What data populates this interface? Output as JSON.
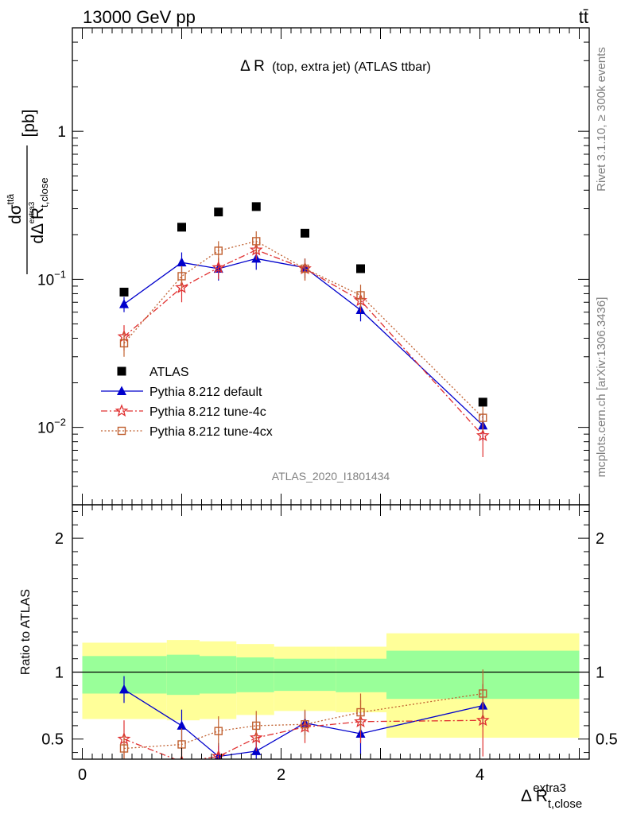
{
  "header": {
    "left": "13000 GeV pp",
    "right": "tt̄"
  },
  "colors": {
    "atlas": "#000000",
    "default": "#0000cc",
    "tune4c": "#e03030",
    "tune4cx": "#c06030",
    "band_inner": "#99ff99",
    "band_outer": "#ffff99"
  },
  "side_texts": {
    "rivet": "Rivet 3.1.10, ≥ 300k events",
    "mcplots": "mcplots.cern.ch [arXiv:1306.3436]"
  },
  "analysis_tag": "ATLAS_2020_I1801434",
  "chart_data": [
    {
      "type": "scatter",
      "title_main": "Δ R",
      "title_detail": "(top, extra jet) (ATLAS ttbar)",
      "ylabel": {
        "num": "dσ",
        "num_sup": "ttā",
        "den": "dΔ R",
        "den_sub": "t,close",
        "den_sup": "extra3",
        "unit": "[pb]"
      },
      "yscale": "log",
      "ylim": [
        0.003,
        5
      ],
      "xlim": [
        -0.1,
        5.1
      ],
      "yticks": [
        {
          "value": 0.01,
          "base": "10",
          "exp": "−2"
        },
        {
          "value": 0.1,
          "base": "10",
          "exp": "−1"
        },
        {
          "value": 1,
          "base": "1",
          "exp": ""
        }
      ],
      "legend_placement": "lower-left",
      "series": [
        {
          "name": "ATLAS",
          "key": "atlas",
          "marker": "square",
          "x": [
            0.42,
            1.0,
            1.37,
            1.75,
            2.24,
            2.8,
            4.03
          ],
          "y": [
            0.082,
            0.225,
            0.285,
            0.31,
            0.205,
            0.118,
            0.0148
          ]
        },
        {
          "name": "Pythia 8.212 default",
          "key": "default",
          "marker": "triangle",
          "x": [
            0.42,
            1.0,
            1.37,
            1.75,
            2.24,
            2.8,
            4.03
          ],
          "y": [
            0.068,
            0.13,
            0.118,
            0.138,
            0.12,
            0.062,
            0.0103
          ],
          "err": [
            0.008,
            0.022,
            0.02,
            0.022,
            0.018,
            0.01,
            0.0022
          ]
        },
        {
          "name": "Pythia 8.212 tune-4c",
          "key": "tune4c",
          "marker": "star",
          "x": [
            0.42,
            1.0,
            1.37,
            1.75,
            2.24,
            2.8,
            4.03
          ],
          "y": [
            0.041,
            0.088,
            0.12,
            0.158,
            0.118,
            0.072,
            0.0088
          ],
          "err": [
            0.008,
            0.018,
            0.02,
            0.022,
            0.02,
            0.012,
            0.0025
          ]
        },
        {
          "name": "Pythia 8.212 tune-4cx",
          "key": "tune4cx",
          "marker": "open-square",
          "x": [
            0.42,
            1.0,
            1.37,
            1.75,
            2.24,
            2.8,
            4.03
          ],
          "y": [
            0.037,
            0.105,
            0.156,
            0.181,
            0.118,
            0.078,
            0.0116
          ],
          "err": [
            0.007,
            0.018,
            0.025,
            0.03,
            0.02,
            0.014,
            0.0022
          ]
        }
      ]
    },
    {
      "type": "scatter",
      "ylabel": "Ratio to ATLAS",
      "xlabel": {
        "main": "Δ R",
        "sub": "t,close",
        "sup": "extra3"
      },
      "xlim": [
        -0.1,
        5.1
      ],
      "ylim": [
        0.35,
        2.25
      ],
      "xticks": [
        0,
        2,
        4
      ],
      "yticks": [
        0.5,
        1,
        2
      ],
      "reference_line": 1,
      "bins": [
        {
          "lo": 0.0,
          "hi": 0.85,
          "inner": [
            0.84,
            1.12
          ],
          "outer": [
            0.65,
            1.22
          ]
        },
        {
          "lo": 0.85,
          "hi": 1.18,
          "inner": [
            0.83,
            1.13
          ],
          "outer": [
            0.64,
            1.24
          ]
        },
        {
          "lo": 1.18,
          "hi": 1.55,
          "inner": [
            0.84,
            1.12
          ],
          "outer": [
            0.65,
            1.23
          ]
        },
        {
          "lo": 1.55,
          "hi": 1.93,
          "inner": [
            0.85,
            1.11
          ],
          "outer": [
            0.68,
            1.21
          ]
        },
        {
          "lo": 1.93,
          "hi": 2.55,
          "inner": [
            0.86,
            1.1
          ],
          "outer": [
            0.71,
            1.19
          ]
        },
        {
          "lo": 2.55,
          "hi": 3.06,
          "inner": [
            0.85,
            1.1
          ],
          "outer": [
            0.7,
            1.19
          ]
        },
        {
          "lo": 3.06,
          "hi": 5.0,
          "inner": [
            0.8,
            1.16
          ],
          "outer": [
            0.51,
            1.29
          ]
        }
      ],
      "series": [
        {
          "name": "Pythia 8.212 default",
          "key": "default",
          "marker": "triangle",
          "x": [
            0.42,
            1.0,
            1.37,
            1.75,
            2.24,
            2.8,
            4.03
          ],
          "y": [
            0.87,
            0.6,
            0.37,
            0.41,
            0.62,
            0.54,
            0.75
          ],
          "err": [
            0.1,
            0.12,
            0.1,
            0.08,
            0.09,
            0.16,
            0.16
          ]
        },
        {
          "name": "Pythia 8.212 tune-4c",
          "key": "tune4c",
          "marker": "star",
          "x": [
            0.42,
            1.0,
            1.37,
            1.75,
            2.24,
            2.8,
            4.03
          ],
          "y": [
            0.5,
            0.33,
            0.37,
            0.51,
            0.59,
            0.63,
            0.64
          ],
          "err": [
            0.14,
            0.1,
            0.09,
            0.1,
            0.12,
            0.16,
            0.27
          ]
        },
        {
          "name": "Pythia 8.212 tune-4cx",
          "key": "tune4cx",
          "marker": "open-square",
          "x": [
            0.42,
            1.0,
            1.37,
            1.75,
            2.24,
            2.8,
            4.03
          ],
          "y": [
            0.43,
            0.46,
            0.56,
            0.6,
            0.61,
            0.7,
            0.84
          ],
          "err": [
            0.1,
            0.12,
            0.11,
            0.11,
            0.11,
            0.14,
            0.18
          ]
        }
      ]
    }
  ]
}
